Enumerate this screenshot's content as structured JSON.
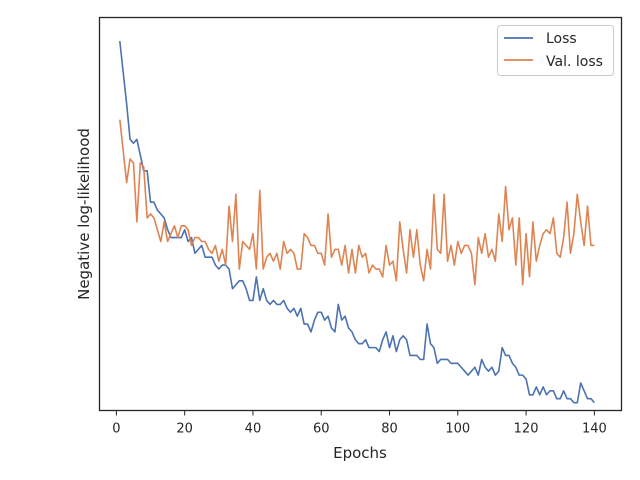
{
  "chart_data": {
    "type": "line",
    "title": "",
    "xlabel": "Epochs",
    "ylabel": "Negative log-likelihood",
    "xlim": [
      -4.95,
      147.95
    ],
    "ylim": [
      0.0,
      1.0
    ],
    "y_tick_labels_shown": false,
    "xticks": [
      0,
      20,
      40,
      60,
      80,
      100,
      120,
      140
    ],
    "grid": false,
    "legend_position": "top-right",
    "x": [
      1,
      2,
      3,
      4,
      5,
      6,
      7,
      8,
      9,
      10,
      11,
      12,
      13,
      14,
      15,
      16,
      17,
      18,
      19,
      20,
      21,
      22,
      23,
      24,
      25,
      26,
      27,
      28,
      29,
      30,
      31,
      32,
      33,
      34,
      35,
      36,
      37,
      38,
      39,
      40,
      41,
      42,
      43,
      44,
      45,
      46,
      47,
      48,
      49,
      50,
      51,
      52,
      53,
      54,
      55,
      56,
      57,
      58,
      59,
      60,
      61,
      62,
      63,
      64,
      65,
      66,
      67,
      68,
      69,
      70,
      71,
      72,
      73,
      74,
      75,
      76,
      77,
      78,
      79,
      80,
      81,
      82,
      83,
      84,
      85,
      86,
      87,
      88,
      89,
      90,
      91,
      92,
      93,
      94,
      95,
      96,
      97,
      98,
      99,
      100,
      101,
      102,
      103,
      104,
      105,
      106,
      107,
      108,
      109,
      110,
      111,
      112,
      113,
      114,
      115,
      116,
      117,
      118,
      119,
      120,
      121,
      122,
      123,
      124,
      125,
      126,
      127,
      128,
      129,
      130,
      131,
      132,
      133,
      134,
      135,
      136,
      137,
      138,
      139,
      140
    ],
    "series": [
      {
        "name": "Loss",
        "color": "#4c72b0",
        "values": [
          0.94,
          0.86,
          0.78,
          0.69,
          0.68,
          0.69,
          0.65,
          0.61,
          0.61,
          0.53,
          0.53,
          0.51,
          0.5,
          0.49,
          0.46,
          0.44,
          0.44,
          0.44,
          0.44,
          0.46,
          0.43,
          0.44,
          0.4,
          0.41,
          0.42,
          0.39,
          0.39,
          0.39,
          0.37,
          0.36,
          0.37,
          0.37,
          0.36,
          0.31,
          0.32,
          0.33,
          0.33,
          0.31,
          0.28,
          0.28,
          0.34,
          0.28,
          0.31,
          0.28,
          0.27,
          0.28,
          0.27,
          0.27,
          0.28,
          0.26,
          0.25,
          0.26,
          0.24,
          0.26,
          0.22,
          0.22,
          0.2,
          0.23,
          0.25,
          0.25,
          0.23,
          0.24,
          0.21,
          0.2,
          0.27,
          0.23,
          0.24,
          0.21,
          0.2,
          0.18,
          0.17,
          0.17,
          0.18,
          0.16,
          0.16,
          0.16,
          0.15,
          0.18,
          0.2,
          0.16,
          0.19,
          0.15,
          0.18,
          0.19,
          0.18,
          0.14,
          0.14,
          0.14,
          0.13,
          0.13,
          0.22,
          0.17,
          0.16,
          0.12,
          0.13,
          0.13,
          0.13,
          0.12,
          0.12,
          0.12,
          0.11,
          0.1,
          0.09,
          0.1,
          0.11,
          0.09,
          0.13,
          0.11,
          0.1,
          0.11,
          0.09,
          0.1,
          0.16,
          0.14,
          0.14,
          0.12,
          0.11,
          0.09,
          0.09,
          0.08,
          0.04,
          0.04,
          0.06,
          0.04,
          0.06,
          0.04,
          0.05,
          0.05,
          0.03,
          0.03,
          0.05,
          0.03,
          0.03,
          0.02,
          0.02,
          0.07,
          0.05,
          0.03,
          0.03,
          0.02
        ]
      },
      {
        "name": "Val. loss",
        "color": "#dd8452",
        "values": [
          0.74,
          0.66,
          0.58,
          0.64,
          0.63,
          0.48,
          0.63,
          0.62,
          0.49,
          0.5,
          0.49,
          0.46,
          0.43,
          0.48,
          0.43,
          0.45,
          0.47,
          0.44,
          0.47,
          0.47,
          0.46,
          0.42,
          0.44,
          0.44,
          0.43,
          0.43,
          0.41,
          0.4,
          0.42,
          0.38,
          0.41,
          0.37,
          0.52,
          0.43,
          0.55,
          0.36,
          0.43,
          0.42,
          0.41,
          0.45,
          0.36,
          0.56,
          0.36,
          0.39,
          0.4,
          0.38,
          0.4,
          0.36,
          0.43,
          0.4,
          0.41,
          0.4,
          0.36,
          0.36,
          0.45,
          0.44,
          0.42,
          0.42,
          0.4,
          0.4,
          0.37,
          0.5,
          0.39,
          0.41,
          0.41,
          0.37,
          0.42,
          0.35,
          0.41,
          0.35,
          0.42,
          0.39,
          0.4,
          0.35,
          0.37,
          0.36,
          0.36,
          0.34,
          0.42,
          0.37,
          0.38,
          0.33,
          0.48,
          0.41,
          0.35,
          0.46,
          0.39,
          0.46,
          0.37,
          0.33,
          0.41,
          0.36,
          0.55,
          0.41,
          0.4,
          0.55,
          0.38,
          0.42,
          0.37,
          0.43,
          0.4,
          0.42,
          0.42,
          0.4,
          0.32,
          0.44,
          0.4,
          0.45,
          0.39,
          0.41,
          0.38,
          0.5,
          0.43,
          0.57,
          0.46,
          0.49,
          0.37,
          0.49,
          0.32,
          0.45,
          0.34,
          0.48,
          0.38,
          0.42,
          0.45,
          0.46,
          0.45,
          0.49,
          0.4,
          0.39,
          0.44,
          0.53,
          0.4,
          0.45,
          0.55,
          0.48,
          0.42,
          0.52,
          0.42,
          0.42
        ]
      }
    ]
  }
}
